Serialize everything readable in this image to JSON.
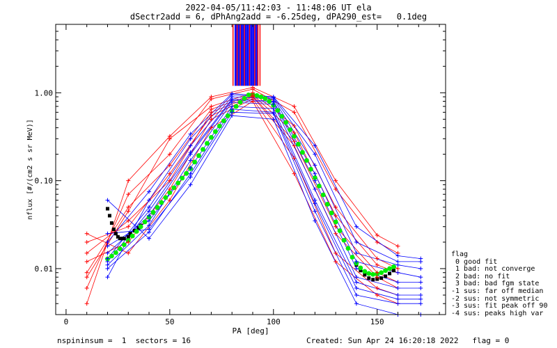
{
  "header": {
    "title_line1": "2022-04-05/11:42:03 - 11:48:06 UT ela",
    "title_line2": "dSectr2add = 6, dPhAng2add = -6.25deg, dPA290_est=   0.1deg"
  },
  "legend": {
    "title": "flag",
    "items": [
      " 0 good fit",
      " 1 bad: not converge",
      " 2 bad: no fit",
      " 3 bad: bad fgm state",
      "-1 sus: far off median",
      "-2 sus: not symmetric",
      "-3 sus: fit peak off 90",
      "-4 sus: peaks high var"
    ]
  },
  "footer": {
    "left": "nspininsum =  1  sectors = 16",
    "right": "Created: Sun Apr 24 16:20:18 2022   flag = 0"
  },
  "colors": {
    "red_series": "#ff0000",
    "blue_series": "#0000ff",
    "green_fit": "#00ee00",
    "black_median": "#000000"
  },
  "chart_data": {
    "type": "line",
    "xlabel": "PA [deg]",
    "ylabel": "nflux [#/(cm2 s sr MeV)]",
    "xlim": [
      -5,
      183
    ],
    "ylim": [
      0.003,
      6
    ],
    "yscale": "log",
    "x_ticks": [
      0,
      50,
      100,
      150
    ],
    "y_ticks": [
      {
        "value": 0.01,
        "label": "0.01"
      },
      {
        "value": 0.1,
        "label": "0.10"
      },
      {
        "value": 1.0,
        "label": "1.00"
      }
    ],
    "green_fit": {
      "x": [
        20,
        22,
        24,
        26,
        28,
        30,
        32,
        34,
        36,
        38,
        40,
        42,
        44,
        46,
        48,
        50,
        52,
        54,
        56,
        58,
        60,
        62,
        64,
        66,
        68,
        70,
        72,
        74,
        76,
        78,
        80,
        82,
        84,
        86,
        88,
        90,
        92,
        94,
        96,
        98,
        100,
        102,
        104,
        106,
        108,
        110,
        112,
        114,
        116,
        118,
        120,
        122,
        124,
        126,
        128,
        130,
        132,
        134,
        136,
        138,
        140,
        142,
        144,
        146,
        148,
        150,
        152,
        154,
        156,
        158
      ],
      "y": [
        0.0129,
        0.0139,
        0.0152,
        0.0168,
        0.0187,
        0.0209,
        0.0235,
        0.0265,
        0.03,
        0.034,
        0.0386,
        0.0438,
        0.0498,
        0.0566,
        0.0644,
        0.0732,
        0.0831,
        0.0942,
        0.107,
        0.121,
        0.137,
        0.163,
        0.193,
        0.227,
        0.266,
        0.311,
        0.362,
        0.418,
        0.48,
        0.548,
        0.621,
        0.699,
        0.781,
        0.864,
        0.945,
        0.95,
        0.93,
        0.9,
        0.86,
        0.8,
        0.72,
        0.63,
        0.54,
        0.46,
        0.38,
        0.32,
        0.26,
        0.21,
        0.17,
        0.135,
        0.108,
        0.087,
        0.069,
        0.054,
        0.043,
        0.034,
        0.027,
        0.021,
        0.017,
        0.0135,
        0.0115,
        0.0102,
        0.0093,
        0.0088,
        0.0086,
        0.0087,
        0.009,
        0.0095,
        0.01,
        0.0105
      ]
    },
    "black_median": {
      "x": [
        20,
        21,
        22,
        23,
        24,
        25,
        26,
        27,
        28,
        30,
        31,
        33,
        35,
        36,
        38,
        40,
        42,
        44,
        46,
        48,
        50,
        52,
        54,
        56,
        58,
        60,
        62,
        64,
        66,
        68,
        70,
        72,
        74,
        76,
        78,
        80,
        82,
        84,
        86,
        88,
        90,
        92,
        94,
        96,
        98,
        100,
        102,
        104,
        106,
        108,
        110,
        112,
        114,
        116,
        118,
        120,
        122,
        124,
        126,
        128,
        130,
        132,
        134,
        136,
        138,
        140,
        142,
        144,
        146,
        148,
        150,
        152,
        154,
        156,
        158
      ],
      "y": [
        0.048,
        0.04,
        0.033,
        0.028,
        0.025,
        0.023,
        0.022,
        0.022,
        0.022,
        0.023,
        0.025,
        0.027,
        0.029,
        0.031,
        0.034,
        0.038,
        0.043,
        0.049,
        0.056,
        0.064,
        0.073,
        0.083,
        0.094,
        0.107,
        0.121,
        0.137,
        0.163,
        0.193,
        0.227,
        0.266,
        0.311,
        0.362,
        0.418,
        0.48,
        0.548,
        0.621,
        0.699,
        0.781,
        0.864,
        0.945,
        0.95,
        0.93,
        0.9,
        0.86,
        0.8,
        0.72,
        0.63,
        0.54,
        0.46,
        0.38,
        0.32,
        0.26,
        0.21,
        0.17,
        0.135,
        0.108,
        0.087,
        0.069,
        0.054,
        0.043,
        0.034,
        0.027,
        0.021,
        0.017,
        0.0135,
        0.011,
        0.0095,
        0.0085,
        0.0078,
        0.0075,
        0.0076,
        0.0078,
        0.0082,
        0.0088,
        0.0095
      ]
    },
    "blue_series": [
      {
        "x": [
          20,
          40,
          60,
          80,
          100,
          120,
          140,
          160,
          171
        ],
        "y": [
          0.011,
          0.031,
          0.17,
          0.78,
          0.74,
          0.08,
          0.008,
          0.006,
          0.006
        ]
      },
      {
        "x": [
          20,
          40,
          60,
          80,
          100,
          120,
          140,
          160,
          171
        ],
        "y": [
          0.012,
          0.045,
          0.21,
          0.85,
          0.8,
          0.12,
          0.012,
          0.009,
          0.008
        ]
      },
      {
        "x": [
          20,
          40,
          60,
          80,
          100,
          120,
          140,
          160,
          171
        ],
        "y": [
          0.018,
          0.035,
          0.14,
          0.7,
          0.66,
          0.06,
          0.007,
          0.005,
          0.005
        ]
      },
      {
        "x": [
          20,
          40,
          60,
          80,
          100,
          120,
          140,
          160,
          171
        ],
        "y": [
          0.013,
          0.05,
          0.25,
          0.9,
          0.85,
          0.15,
          0.015,
          0.011,
          0.01
        ]
      },
      {
        "x": [
          20,
          40,
          60,
          80,
          100,
          120,
          140,
          160,
          171
        ],
        "y": [
          0.025,
          0.028,
          0.11,
          0.6,
          0.58,
          0.045,
          0.005,
          0.004,
          0.004
        ]
      },
      {
        "x": [
          20,
          40,
          60,
          80,
          100,
          120,
          140,
          160,
          171
        ],
        "y": [
          0.008,
          0.06,
          0.3,
          0.95,
          0.88,
          0.2,
          0.02,
          0.012,
          0.012
        ]
      },
      {
        "x": [
          20,
          40,
          60,
          80,
          100,
          120,
          140,
          160,
          171
        ],
        "y": [
          0.06,
          0.022,
          0.09,
          0.55,
          0.5,
          0.035,
          0.004,
          0.003,
          0.003
        ]
      },
      {
        "x": [
          20,
          40,
          60,
          80,
          100,
          120,
          140,
          160,
          171
        ],
        "y": [
          0.015,
          0.04,
          0.2,
          0.82,
          0.78,
          0.1,
          0.01,
          0.007,
          0.007
        ]
      },
      {
        "x": [
          20,
          40,
          60,
          80,
          100,
          120,
          140,
          160,
          171
        ],
        "y": [
          0.02,
          0.075,
          0.34,
          0.98,
          0.9,
          0.25,
          0.03,
          0.014,
          0.013
        ]
      },
      {
        "x": [
          20,
          40,
          60,
          80,
          100,
          120,
          140,
          160,
          171
        ],
        "y": [
          0.01,
          0.026,
          0.12,
          0.65,
          0.6,
          0.055,
          0.006,
          0.0045,
          0.0045
        ]
      }
    ],
    "red_series": [
      {
        "x": [
          10,
          30,
          50,
          70,
          90,
          110,
          130,
          150,
          160
        ],
        "y": [
          0.008,
          0.045,
          0.3,
          0.7,
          1.0,
          0.42,
          0.05,
          0.013,
          0.01
        ]
      },
      {
        "x": [
          10,
          30,
          50,
          70,
          90,
          110,
          130,
          150,
          160
        ],
        "y": [
          0.02,
          0.03,
          0.12,
          0.55,
          0.9,
          0.25,
          0.025,
          0.008,
          0.006
        ]
      },
      {
        "x": [
          10,
          30,
          50,
          70,
          90,
          110,
          130,
          150,
          160
        ],
        "y": [
          0.006,
          0.07,
          0.2,
          0.85,
          1.1,
          0.6,
          0.08,
          0.02,
          0.015
        ]
      },
      {
        "x": [
          10,
          30,
          50,
          70,
          90,
          110,
          130,
          150,
          160
        ],
        "y": [
          0.012,
          0.02,
          0.08,
          0.5,
          0.85,
          0.18,
          0.015,
          0.006,
          0.005
        ]
      },
      {
        "x": [
          10,
          30,
          50,
          70,
          90,
          110,
          130,
          150,
          160
        ],
        "y": [
          0.004,
          0.1,
          0.32,
          0.9,
          1.15,
          0.7,
          0.1,
          0.024,
          0.018
        ]
      },
      {
        "x": [
          10,
          30,
          50,
          70,
          90,
          110,
          130,
          150,
          160
        ],
        "y": [
          0.025,
          0.015,
          0.06,
          0.4,
          0.8,
          0.12,
          0.012,
          0.005,
          0.004
        ]
      },
      {
        "x": [
          10,
          30,
          50,
          70,
          90,
          110,
          130,
          150,
          160
        ],
        "y": [
          0.009,
          0.05,
          0.15,
          0.65,
          0.95,
          0.35,
          0.04,
          0.011,
          0.009
        ]
      },
      {
        "x": [
          10,
          30,
          50,
          70,
          90,
          110,
          130,
          150,
          160
        ],
        "y": [
          0.015,
          0.035,
          0.1,
          0.6,
          0.92,
          0.28,
          0.03,
          0.009,
          0.007
        ]
      }
    ],
    "vertical_lines": [
      {
        "x": 80.5,
        "color": "red"
      },
      {
        "x": 81.5,
        "color": "blue"
      },
      {
        "x": 82.0,
        "color": "blue"
      },
      {
        "x": 82.5,
        "color": "red"
      },
      {
        "x": 83.0,
        "color": "blue"
      },
      {
        "x": 83.5,
        "color": "blue"
      },
      {
        "x": 84.0,
        "color": "red"
      },
      {
        "x": 84.5,
        "color": "blue"
      },
      {
        "x": 85.0,
        "color": "blue"
      },
      {
        "x": 85.5,
        "color": "blue"
      },
      {
        "x": 86.0,
        "color": "red"
      },
      {
        "x": 86.5,
        "color": "blue"
      },
      {
        "x": 87.0,
        "color": "blue"
      },
      {
        "x": 87.5,
        "color": "blue"
      },
      {
        "x": 88.0,
        "color": "blue"
      },
      {
        "x": 88.5,
        "color": "red"
      },
      {
        "x": 89.0,
        "color": "blue"
      },
      {
        "x": 89.5,
        "color": "blue"
      },
      {
        "x": 90.0,
        "color": "blue"
      },
      {
        "x": 90.5,
        "color": "blue"
      },
      {
        "x": 91.0,
        "color": "red"
      },
      {
        "x": 91.5,
        "color": "blue"
      },
      {
        "x": 92.0,
        "color": "blue"
      },
      {
        "x": 92.5,
        "color": "red"
      },
      {
        "x": 93.5,
        "color": "red"
      }
    ],
    "vertical_lines_y_range": [
      1.2,
      6
    ]
  }
}
